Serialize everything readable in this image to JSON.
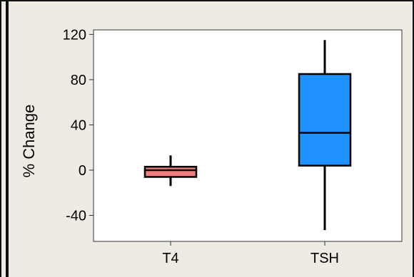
{
  "chart_data": {
    "type": "box",
    "title": "",
    "xlabel": "",
    "ylabel": "% Change",
    "ylim": [
      -63,
      124
    ],
    "yticks": [
      -40,
      0,
      40,
      80,
      120
    ],
    "ytick_labels": [
      "-40",
      "0",
      "40",
      "80",
      "120"
    ],
    "categories": [
      "T4",
      "TSH"
    ],
    "boxes": [
      {
        "name": "T4",
        "whisker_low": -14,
        "q1": -6,
        "median": 0,
        "q3": 3,
        "whisker_high": 13,
        "color": "#f08080"
      },
      {
        "name": "TSH",
        "whisker_low": -53,
        "q1": 4,
        "median": 33,
        "q3": 85,
        "whisker_high": 115,
        "color": "#1e90ff"
      }
    ],
    "grid": false,
    "legend": "none"
  },
  "colors": {
    "panel_background": "#eeebe2",
    "plot_background": "#ffffff"
  }
}
